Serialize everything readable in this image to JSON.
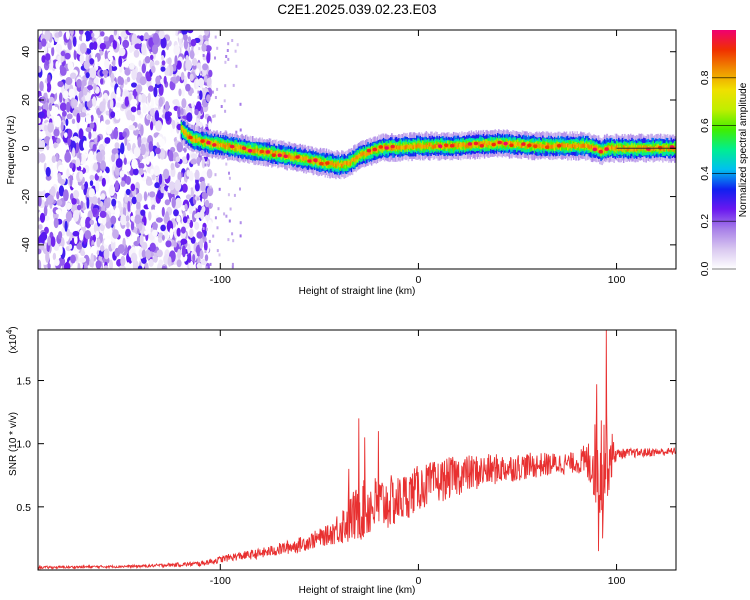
{
  "figure": {
    "title": "C2E1.2025.039.02.23.E03"
  },
  "chart_data": [
    {
      "type": "heatmap",
      "title": "C2E1.2025.039.02.23.E03",
      "xlabel": "Height of straight line (km)",
      "ylabel": "Frequency (Hz)",
      "xlim": [
        -192,
        130
      ],
      "ylim": [
        -50,
        49
      ],
      "xticks": [
        -100,
        0,
        100
      ],
      "yticks": [
        -40,
        -20,
        0,
        20,
        40
      ],
      "grid": false,
      "colorbar": {
        "label": "Normalized spectral amplitude",
        "range": [
          0,
          1
        ],
        "ticks": [
          0.0,
          0.2,
          0.4,
          0.6,
          0.8
        ],
        "colors": [
          "#ffffff",
          "#d9c8f0",
          "#a880e8",
          "#6a18f0",
          "#1020f0",
          "#00c0f0",
          "#00ee90",
          "#40ee00",
          "#c0ee00",
          "#f0e000",
          "#f09000",
          "#f03000",
          "#f00070"
        ]
      },
      "noise_region": {
        "x_range": [
          -192,
          -105
        ],
        "freq_range": [
          -50,
          49
        ],
        "amplitude_range": [
          0.0,
          0.3
        ]
      },
      "ridge": [
        {
          "x": -120,
          "freq": 8
        },
        {
          "x": -115,
          "freq": 4
        },
        {
          "x": -105,
          "freq": 2
        },
        {
          "x": -90,
          "freq": 0
        },
        {
          "x": -75,
          "freq": -2
        },
        {
          "x": -60,
          "freq": -4
        },
        {
          "x": -48,
          "freq": -6
        },
        {
          "x": -40,
          "freq": -7
        },
        {
          "x": -35,
          "freq": -6
        },
        {
          "x": -30,
          "freq": -3
        },
        {
          "x": -20,
          "freq": 0
        },
        {
          "x": 0,
          "freq": 1
        },
        {
          "x": 20,
          "freq": 1
        },
        {
          "x": 40,
          "freq": 2
        },
        {
          "x": 60,
          "freq": 1
        },
        {
          "x": 85,
          "freq": 1
        },
        {
          "x": 92,
          "freq": -1
        },
        {
          "x": 95,
          "freq": 0
        },
        {
          "x": 130,
          "freq": 0
        }
      ]
    },
    {
      "type": "line",
      "xlabel": "Height of straight line (km)",
      "ylabel": "SNR (10 * v/v)",
      "y_multiplier": "(x10",
      "y_multiplier_exp": "4",
      "y_multiplier_close": ")",
      "xlim": [
        -192,
        130
      ],
      "ylim": [
        0,
        1.9
      ],
      "xticks": [
        -100,
        0,
        100
      ],
      "yticks": [
        0.5,
        1.0,
        1.5
      ],
      "ytick_labels": [
        "0.5",
        "1.0",
        "1.5"
      ],
      "grid": false,
      "color": "#e83030",
      "envelope": [
        {
          "x": -192,
          "mean": 0.02,
          "amp": 0.01
        },
        {
          "x": -140,
          "mean": 0.03,
          "amp": 0.01
        },
        {
          "x": -110,
          "mean": 0.05,
          "amp": 0.02
        },
        {
          "x": -95,
          "mean": 0.1,
          "amp": 0.03
        },
        {
          "x": -80,
          "mean": 0.13,
          "amp": 0.04
        },
        {
          "x": -60,
          "mean": 0.2,
          "amp": 0.06
        },
        {
          "x": -45,
          "mean": 0.28,
          "amp": 0.08
        },
        {
          "x": -35,
          "mean": 0.4,
          "amp": 0.2
        },
        {
          "x": -25,
          "mean": 0.5,
          "amp": 0.25
        },
        {
          "x": -10,
          "mean": 0.55,
          "amp": 0.2
        },
        {
          "x": 0,
          "mean": 0.65,
          "amp": 0.18
        },
        {
          "x": 20,
          "mean": 0.75,
          "amp": 0.16
        },
        {
          "x": 40,
          "mean": 0.8,
          "amp": 0.12
        },
        {
          "x": 60,
          "mean": 0.83,
          "amp": 0.1
        },
        {
          "x": 80,
          "mean": 0.85,
          "amp": 0.08
        },
        {
          "x": 87,
          "mean": 0.85,
          "amp": 0.2
        },
        {
          "x": 92,
          "mean": 0.85,
          "amp": 0.5
        },
        {
          "x": 96,
          "mean": 0.9,
          "amp": 0.3
        },
        {
          "x": 100,
          "mean": 0.92,
          "amp": 0.04
        },
        {
          "x": 130,
          "mean": 0.94,
          "amp": 0.03
        }
      ],
      "spikes": [
        {
          "x": -35,
          "y": 0.8
        },
        {
          "x": -30,
          "y": 1.2
        },
        {
          "x": -27,
          "y": 1.05
        },
        {
          "x": -20,
          "y": 1.1
        },
        {
          "x": 90,
          "y": 1.47
        },
        {
          "x": 93,
          "y": 1.55
        },
        {
          "x": 95,
          "y": 1.9
        },
        {
          "x": 91,
          "y": 0.15
        },
        {
          "x": 93,
          "y": 0.25
        }
      ]
    }
  ]
}
